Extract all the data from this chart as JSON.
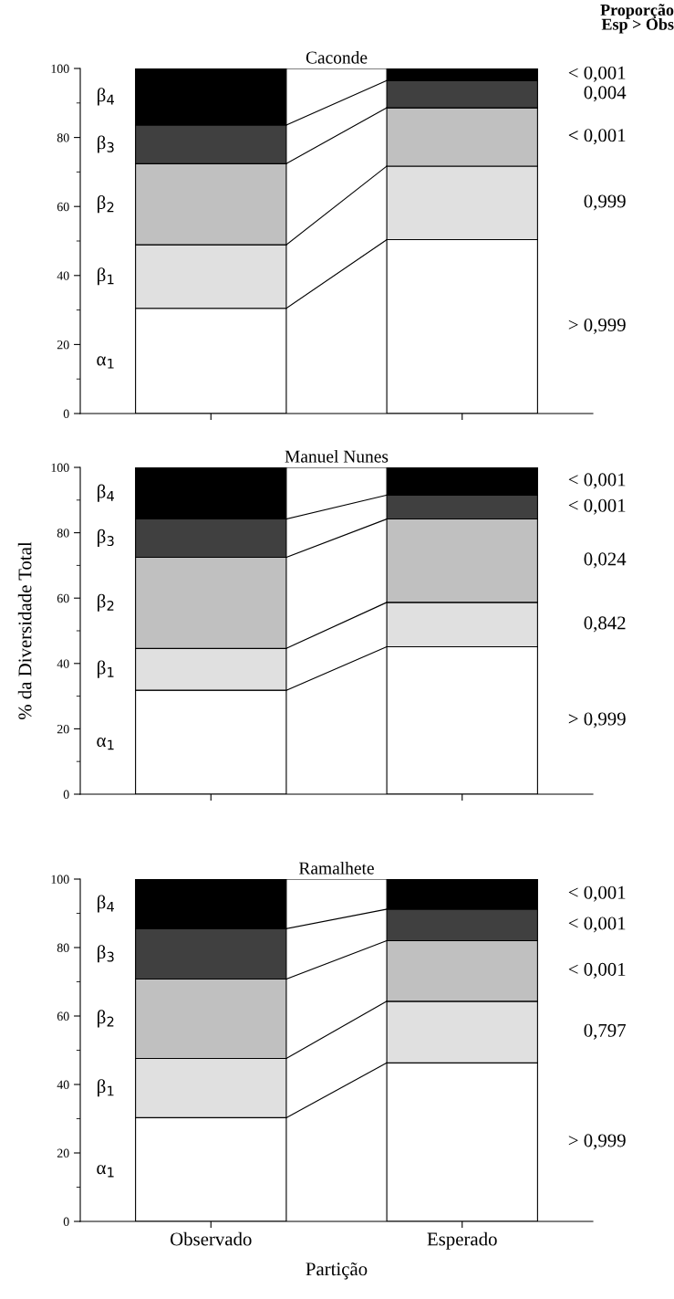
{
  "chart_data": [
    {
      "type": "bar",
      "stacked": true,
      "title": "Caconde",
      "categories": [
        null,
        null
      ],
      "ylim": [
        0,
        100
      ],
      "yticks": [
        0,
        20,
        40,
        60,
        80,
        100
      ],
      "tick_labels": "y",
      "legend": false,
      "grid": false,
      "series": [
        {
          "name": "α$_{1}$",
          "color": "#ffffff",
          "values": [
            30.5,
            50.4
          ]
        },
        {
          "name": "β$_{1}$",
          "color": "#e0e0e0",
          "values": [
            18.4,
            21.3
          ]
        },
        {
          "name": "β$_{2}$",
          "color": "#c0c0c0",
          "values": [
            23.5,
            16.9
          ]
        },
        {
          "name": "β$_{3}$",
          "color": "#404040",
          "values": [
            11.2,
            7.9
          ]
        },
        {
          "name": "β$_{4}$",
          "color": "#000000",
          "values": [
            16.4,
            3.5
          ]
        }
      ],
      "annotations": [
        "Proporção\nEsp > Obs",
        "< 0,001",
        "0,004",
        "< 0,001",
        "0,999",
        "> 0,999"
      ]
    },
    {
      "type": "bar",
      "stacked": true,
      "title": "Manuel Nunes",
      "ylabel": "% da Diversidade Total",
      "categories": [
        null,
        null
      ],
      "ylim": [
        0,
        100
      ],
      "yticks": [
        0,
        20,
        40,
        60,
        80,
        100
      ],
      "tick_labels": "y",
      "legend": false,
      "grid": false,
      "series": [
        {
          "name": "α$_{1}$",
          "color": "#ffffff",
          "values": [
            31.8,
            45.1
          ]
        },
        {
          "name": "β$_{1}$",
          "color": "#e0e0e0",
          "values": [
            12.8,
            13.6
          ]
        },
        {
          "name": "β$_{2}$",
          "color": "#c0c0c0",
          "values": [
            27.9,
            25.5
          ]
        },
        {
          "name": "β$_{3}$",
          "color": "#404040",
          "values": [
            11.7,
            7.3
          ]
        },
        {
          "name": "β$_{4}$",
          "color": "#000000",
          "values": [
            15.8,
            8.5
          ]
        }
      ],
      "annotations": [
        "< 0,001",
        "< 0,001",
        "0,024",
        "0,842",
        "> 0,999"
      ]
    },
    {
      "type": "bar",
      "stacked": true,
      "title": "Ramalhete",
      "xlabel": "Partição",
      "categories": [
        "Observado",
        "Esperado"
      ],
      "ylim": [
        0,
        100
      ],
      "yticks": [
        0,
        20,
        40,
        60,
        80,
        100
      ],
      "legend": false,
      "grid": false,
      "series": [
        {
          "name": "α$_{1}$",
          "color": "#ffffff",
          "values": [
            30.3,
            46.3
          ]
        },
        {
          "name": "β$_{1}$",
          "color": "#e0e0e0",
          "values": [
            17.3,
            18
          ]
        },
        {
          "name": "β$_{2}$",
          "color": "#c0c0c0",
          "values": [
            23.2,
            17.7
          ]
        },
        {
          "name": "β$_{3}$",
          "color": "#404040",
          "values": [
            14.7,
            9.2
          ]
        },
        {
          "name": "β$_{4}$",
          "color": "#000000",
          "values": [
            14.5,
            8.8
          ]
        }
      ],
      "annotations": [
        "< 0,001",
        "< 0,001",
        "< 0,001",
        "0,797",
        "> 0,999"
      ]
    }
  ]
}
